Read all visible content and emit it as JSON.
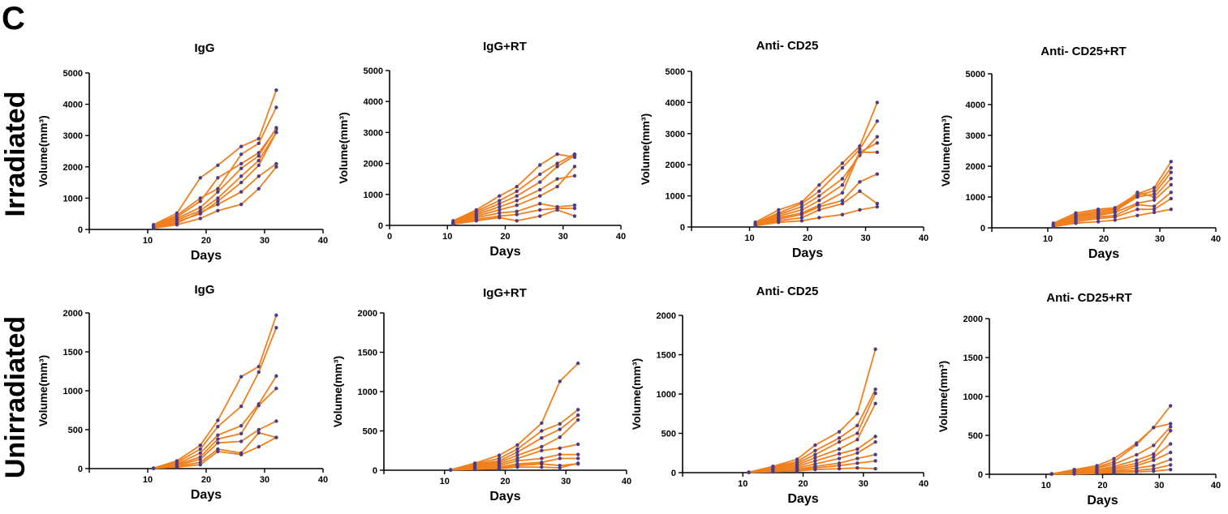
{
  "figure": {
    "panel_letter": "C",
    "row_labels": [
      "Irradiated",
      "Unirradiated"
    ],
    "colors": {
      "line": "#F07F1E",
      "marker": "#4A3C8C",
      "axis": "#000000"
    }
  },
  "chart_data": [
    {
      "type": "line",
      "title": "IgG",
      "xlabel": "Days",
      "ylabel": "Volume(mm³)",
      "xlim": [
        0,
        40
      ],
      "ylim": [
        0,
        5000
      ],
      "xticks": [
        "10",
        "20",
        "30",
        "40"
      ],
      "yticks": [
        "0",
        "1000",
        "2000",
        "3000",
        "4000",
        "5000"
      ],
      "x": [
        11,
        15,
        19,
        22,
        26,
        29,
        32
      ],
      "series": [
        {
          "values": [
            150,
            520,
            1650,
            2050,
            2650,
            2900,
            4450
          ]
        },
        {
          "values": [
            120,
            450,
            1000,
            1300,
            2400,
            2750,
            3900
          ]
        },
        {
          "values": [
            100,
            400,
            900,
            1650,
            2100,
            2450,
            3200
          ]
        },
        {
          "values": [
            90,
            350,
            700,
            1200,
            1950,
            2350,
            3250
          ]
        },
        {
          "values": [
            80,
            300,
            600,
            1000,
            1700,
            2200,
            3100
          ]
        },
        {
          "values": [
            60,
            250,
            500,
            900,
            1500,
            2050,
            3100
          ]
        },
        {
          "values": [
            50,
            200,
            550,
            800,
            1200,
            1700,
            2100
          ]
        },
        {
          "values": [
            40,
            150,
            350,
            600,
            800,
            1300,
            2000
          ]
        }
      ]
    },
    {
      "type": "line",
      "title": "IgG+RT",
      "xlabel": "Days",
      "ylabel": "Volume(mm³)",
      "xlim": [
        0,
        40
      ],
      "ylim": [
        0,
        5000
      ],
      "xticks": [
        "0",
        "10",
        "20",
        "30",
        "40"
      ],
      "yticks": [
        "0",
        "1000",
        "2000",
        "3000",
        "4000",
        "5000"
      ],
      "x": [
        11,
        15,
        19,
        22,
        26,
        29,
        32
      ],
      "series": [
        {
          "values": [
            150,
            500,
            950,
            1250,
            1950,
            2300,
            2200
          ]
        },
        {
          "values": [
            120,
            450,
            800,
            1100,
            1650,
            2000,
            2300
          ]
        },
        {
          "values": [
            100,
            400,
            700,
            950,
            1400,
            1900,
            2250
          ]
        },
        {
          "values": [
            90,
            350,
            600,
            800,
            1150,
            1500,
            1600
          ]
        },
        {
          "values": [
            80,
            300,
            500,
            650,
            950,
            1250,
            1900
          ]
        },
        {
          "values": [
            60,
            250,
            400,
            450,
            700,
            600,
            650
          ]
        },
        {
          "values": [
            50,
            200,
            300,
            350,
            500,
            550,
            550
          ]
        },
        {
          "values": [
            40,
            150,
            250,
            150,
            300,
            500,
            300
          ]
        }
      ]
    },
    {
      "type": "line",
      "title": "Anti- CD25",
      "xlabel": "Days",
      "ylabel": "Volume(mm³)",
      "xlim": [
        0,
        40
      ],
      "ylim": [
        0,
        5000
      ],
      "xticks": [
        "10",
        "20",
        "30",
        "40"
      ],
      "yticks": [
        "0",
        "1000",
        "2000",
        "3000",
        "4000",
        "5000"
      ],
      "x": [
        11,
        15,
        19,
        22,
        26,
        29,
        32
      ],
      "series": [
        {
          "values": [
            150,
            550,
            800,
            1350,
            2050,
            2600,
            4000
          ]
        },
        {
          "values": [
            120,
            450,
            750,
            1150,
            1900,
            2500,
            3400
          ]
        },
        {
          "values": [
            100,
            400,
            650,
            1000,
            1550,
            2300,
            2900
          ]
        },
        {
          "values": [
            90,
            350,
            550,
            850,
            1350,
            2400,
            2700
          ]
        },
        {
          "values": [
            80,
            300,
            450,
            700,
            1100,
            2400,
            2400
          ]
        },
        {
          "values": [
            60,
            250,
            400,
            650,
            850,
            1450,
            1700
          ]
        },
        {
          "values": [
            50,
            200,
            300,
            550,
            750,
            1150,
            750
          ]
        },
        {
          "values": [
            40,
            150,
            200,
            300,
            400,
            550,
            650
          ]
        }
      ]
    },
    {
      "type": "line",
      "title": "Anti- CD25+RT",
      "xlabel": "Days",
      "ylabel": "Volume(mm³)",
      "xlim": [
        0,
        40
      ],
      "ylim": [
        0,
        5000
      ],
      "xticks": [
        "10",
        "20",
        "30",
        "40"
      ],
      "yticks": [
        "0",
        "1000",
        "2000",
        "3000",
        "4000",
        "5000"
      ],
      "x": [
        11,
        15,
        19,
        22,
        26,
        29,
        32
      ],
      "series": [
        {
          "values": [
            150,
            480,
            600,
            650,
            1100,
            1300,
            2150
          ]
        },
        {
          "values": [
            120,
            420,
            550,
            600,
            1050,
            1200,
            1950
          ]
        },
        {
          "values": [
            100,
            380,
            500,
            550,
            1000,
            1100,
            1800
          ]
        },
        {
          "values": [
            90,
            350,
            450,
            500,
            1150,
            1000,
            1600
          ]
        },
        {
          "values": [
            80,
            300,
            400,
            500,
            800,
            900,
            1400
          ]
        },
        {
          "values": [
            60,
            250,
            350,
            400,
            750,
            700,
            1150
          ]
        },
        {
          "values": [
            50,
            200,
            300,
            350,
            600,
            600,
            950
          ]
        },
        {
          "values": [
            40,
            150,
            200,
            250,
            400,
            500,
            600
          ]
        }
      ]
    },
    {
      "type": "line",
      "title": "IgG",
      "xlabel": "Days",
      "ylabel": "Volume(mm³)",
      "xlim": [
        0,
        40
      ],
      "ylim": [
        0,
        2000
      ],
      "xticks": [
        "10",
        "20",
        "30",
        "40"
      ],
      "yticks": [
        "0",
        "500",
        "1000",
        "1500",
        "2000"
      ],
      "x": [
        11,
        15,
        19,
        22,
        26,
        29,
        32
      ],
      "series": [
        {
          "values": [
            5,
            100,
            300,
            620,
            1180,
            1310,
            1970
          ]
        },
        {
          "values": [
            5,
            80,
            250,
            540,
            800,
            1240,
            1810
          ]
        },
        {
          "values": [
            5,
            60,
            200,
            430,
            550,
            830,
            1190
          ]
        },
        {
          "values": [
            5,
            50,
            150,
            380,
            450,
            810,
            1030
          ]
        },
        {
          "values": [
            5,
            40,
            120,
            330,
            350,
            500,
            610
          ]
        },
        {
          "values": [
            5,
            30,
            80,
            250,
            200,
            460,
            400
          ]
        },
        {
          "values": [
            5,
            20,
            50,
            220,
            180,
            280,
            400
          ]
        }
      ]
    },
    {
      "type": "line",
      "title": "IgG+RT",
      "xlabel": "Days",
      "ylabel": "Volume(mm³)",
      "xlim": [
        0,
        40
      ],
      "ylim": [
        0,
        2000
      ],
      "xticks": [
        "10",
        "20",
        "30",
        "40"
      ],
      "yticks": [
        "0",
        "500",
        "1000",
        "1500",
        "2000"
      ],
      "x": [
        11,
        15,
        19,
        22,
        26,
        29,
        32
      ],
      "series": [
        {
          "values": [
            5,
            90,
            190,
            320,
            600,
            1130,
            1360
          ]
        },
        {
          "values": [
            5,
            80,
            150,
            270,
            500,
            590,
            770
          ]
        },
        {
          "values": [
            5,
            70,
            120,
            230,
            410,
            520,
            700
          ]
        },
        {
          "values": [
            5,
            60,
            100,
            190,
            300,
            420,
            640
          ]
        },
        {
          "values": [
            5,
            50,
            80,
            150,
            250,
            280,
            330
          ]
        },
        {
          "values": [
            5,
            40,
            60,
            120,
            150,
            200,
            200
          ]
        },
        {
          "values": [
            5,
            30,
            40,
            80,
            100,
            150,
            150
          ]
        },
        {
          "values": [
            5,
            20,
            30,
            60,
            80,
            60,
            80
          ]
        },
        {
          "values": [
            5,
            10,
            20,
            40,
            40,
            30,
            90
          ]
        }
      ]
    },
    {
      "type": "line",
      "title": "Anti- CD25",
      "xlabel": "Days",
      "ylabel": "Volume(mm³)",
      "xlim": [
        0,
        40
      ],
      "ylim": [
        0,
        2000
      ],
      "xticks": [
        "10",
        "20",
        "30",
        "40"
      ],
      "yticks": [
        "0",
        "500",
        "1000",
        "1500",
        "2000"
      ],
      "x": [
        11,
        15,
        19,
        22,
        26,
        29,
        32
      ],
      "series": [
        {
          "values": [
            5,
            80,
            170,
            350,
            520,
            750,
            1570
          ]
        },
        {
          "values": [
            5,
            70,
            140,
            280,
            440,
            600,
            1060
          ]
        },
        {
          "values": [
            5,
            60,
            120,
            230,
            390,
            500,
            1010
          ]
        },
        {
          "values": [
            5,
            50,
            100,
            190,
            300,
            420,
            880
          ]
        },
        {
          "values": [
            5,
            40,
            80,
            150,
            240,
            300,
            460
          ]
        },
        {
          "values": [
            5,
            30,
            60,
            110,
            180,
            250,
            390
          ]
        },
        {
          "values": [
            5,
            20,
            40,
            80,
            120,
            180,
            230
          ]
        },
        {
          "values": [
            5,
            15,
            30,
            60,
            90,
            120,
            150
          ]
        },
        {
          "values": [
            5,
            10,
            20,
            40,
            50,
            60,
            50
          ]
        }
      ]
    },
    {
      "type": "line",
      "title": "Anti- CD25+RT",
      "xlabel": "Days",
      "ylabel": "Volume(mm³)",
      "xlim": [
        0,
        40
      ],
      "ylim": [
        0,
        2000
      ],
      "xticks": [
        "10",
        "20",
        "30",
        "40"
      ],
      "yticks": [
        "0",
        "500",
        "1000",
        "1500",
        "2000"
      ],
      "x": [
        11,
        15,
        19,
        22,
        26,
        29,
        32
      ],
      "series": [
        {
          "values": [
            5,
            60,
            110,
            200,
            400,
            600,
            880
          ]
        },
        {
          "values": [
            5,
            50,
            90,
            160,
            380,
            600,
            650
          ]
        },
        {
          "values": [
            5,
            40,
            80,
            130,
            250,
            370,
            610
          ]
        },
        {
          "values": [
            5,
            30,
            60,
            100,
            180,
            260,
            560
          ]
        },
        {
          "values": [
            5,
            20,
            50,
            80,
            140,
            220,
            390
          ]
        },
        {
          "values": [
            5,
            15,
            40,
            60,
            110,
            180,
            280
          ]
        },
        {
          "values": [
            5,
            10,
            30,
            40,
            80,
            110,
            190
          ]
        },
        {
          "values": [
            5,
            8,
            20,
            30,
            50,
            70,
            120
          ]
        },
        {
          "values": [
            5,
            5,
            10,
            20,
            30,
            40,
            60
          ]
        }
      ]
    }
  ]
}
